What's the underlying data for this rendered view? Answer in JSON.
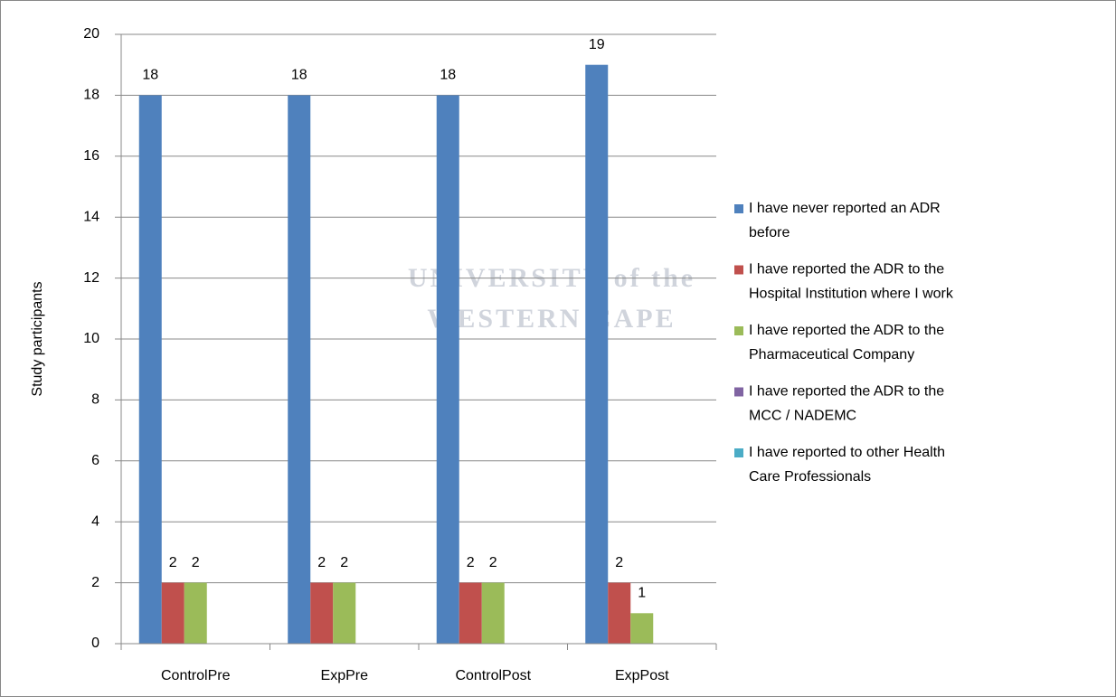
{
  "chart_data": {
    "type": "bar",
    "y_label": "Study participants",
    "watermark": [
      "UNIVERSITY of the",
      "WESTERN CAPE"
    ],
    "categories": [
      "ControlPre",
      "ExpPre",
      "ControlPost",
      "ExpPost"
    ],
    "series": [
      {
        "name": "I have never reported an ADR before",
        "color": "#4f81bd",
        "values": [
          18,
          18,
          18,
          19
        ]
      },
      {
        "name": "I have reported the ADR to the Hospital Institution where I work",
        "color": "#c0504d",
        "values": [
          2,
          2,
          2,
          2
        ]
      },
      {
        "name": "I have reported the ADR to the Pharmaceutical Company",
        "color": "#9bbb59",
        "values": [
          2,
          2,
          2,
          1
        ]
      },
      {
        "name": "I have reported the ADR to the MCC / NADEMC",
        "color": "#8064a2",
        "values": [
          0,
          0,
          0,
          0
        ]
      },
      {
        "name": "I have reported to other Health Care Professionals",
        "color": "#4bacc6",
        "values": [
          0,
          0,
          0,
          0
        ]
      }
    ],
    "ylim": [
      0,
      20
    ],
    "yticks": [
      0,
      2,
      4,
      6,
      8,
      10,
      12,
      14,
      16,
      18,
      20
    ],
    "grid": true,
    "legend": "right"
  }
}
